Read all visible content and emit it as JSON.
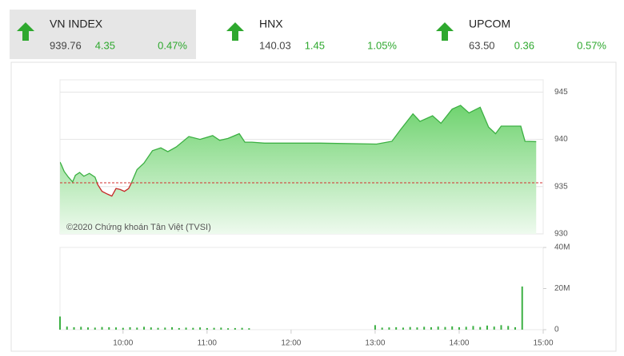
{
  "indices": [
    {
      "name": "VN INDEX",
      "value": "939.76",
      "change": "4.35",
      "percent": "0.47%"
    },
    {
      "name": "HNX",
      "value": "140.03",
      "change": "1.45",
      "percent": "1.05%"
    },
    {
      "name": "UPCOM",
      "value": "63.50",
      "change": "0.36",
      "percent": "0.57%"
    }
  ],
  "chart_data": [
    {
      "type": "area",
      "annotation": "©2020 Chứng khoán Tân Việt (TVSI)",
      "x": [
        555,
        556,
        558,
        561,
        564,
        566,
        569,
        572,
        576,
        580,
        582,
        585,
        589,
        592,
        595,
        598,
        601,
        604,
        606,
        610,
        615,
        621,
        627,
        632,
        638,
        647,
        655,
        664,
        669,
        675,
        683,
        687,
        692,
        701,
        741,
        781,
        792,
        798,
        807,
        812,
        821,
        827,
        835,
        841,
        847,
        855,
        861,
        866,
        870,
        884,
        887,
        895
      ],
      "values": [
        937.6,
        937.3,
        936.6,
        936.0,
        935.5,
        936.2,
        936.5,
        936.1,
        936.4,
        936.0,
        935.2,
        934.5,
        934.2,
        934.0,
        934.8,
        934.7,
        934.5,
        934.8,
        935.4,
        936.8,
        937.5,
        938.8,
        939.1,
        938.7,
        939.2,
        940.3,
        940.0,
        940.4,
        939.9,
        940.1,
        940.6,
        939.7,
        939.7,
        939.6,
        939.6,
        939.5,
        939.8,
        941.0,
        942.7,
        941.9,
        942.5,
        941.7,
        943.2,
        943.6,
        942.8,
        943.4,
        941.3,
        940.6,
        941.4,
        941.4,
        939.8,
        939.76
      ],
      "reference": 935.4,
      "color": "#3cb043",
      "down_color": "#c62828",
      "reference_color": "#d32f2f",
      "xlim": [
        555,
        900
      ],
      "ylim": [
        930,
        946.3
      ],
      "yticks": [
        930,
        935,
        940,
        945
      ],
      "grid": true
    },
    {
      "type": "bar",
      "color": "#3cb043",
      "x": [
        555,
        560,
        565,
        570,
        575,
        580,
        585,
        590,
        595,
        600,
        605,
        610,
        615,
        620,
        625,
        630,
        635,
        640,
        645,
        650,
        655,
        660,
        665,
        670,
        675,
        680,
        685,
        690,
        780,
        785,
        790,
        795,
        800,
        805,
        810,
        815,
        820,
        825,
        830,
        835,
        840,
        845,
        850,
        855,
        860,
        865,
        870,
        875,
        880,
        885
      ],
      "values": [
        6.4,
        1.5,
        1.2,
        1.4,
        1.1,
        1.0,
        1.3,
        1.2,
        1.1,
        0.9,
        1.2,
        1.0,
        1.4,
        1.1,
        0.9,
        1.0,
        1.2,
        0.8,
        1.0,
        0.9,
        1.1,
        0.8,
        0.9,
        1.0,
        0.7,
        0.8,
        0.9,
        0.7,
        2.2,
        1.0,
        1.1,
        1.2,
        1.0,
        1.3,
        1.1,
        1.4,
        1.2,
        1.5,
        1.3,
        1.6,
        1.2,
        1.4,
        1.8,
        1.3,
        2.0,
        1.5,
        2.2,
        1.8,
        1.2,
        21
      ],
      "xlim": [
        555,
        900
      ],
      "ylim": [
        0,
        40
      ],
      "yticks": [
        0,
        {
          "value": 20,
          "label": "20M"
        },
        {
          "value": 40,
          "label": "40M"
        }
      ],
      "xticks": [
        {
          "value": 600,
          "label": "10:00"
        },
        {
          "value": 660,
          "label": "11:00"
        },
        {
          "value": 720,
          "label": "12:00"
        },
        {
          "value": 780,
          "label": "13:00"
        },
        {
          "value": 840,
          "label": "14:00"
        },
        {
          "value": 900,
          "label": "15:00"
        }
      ]
    }
  ]
}
